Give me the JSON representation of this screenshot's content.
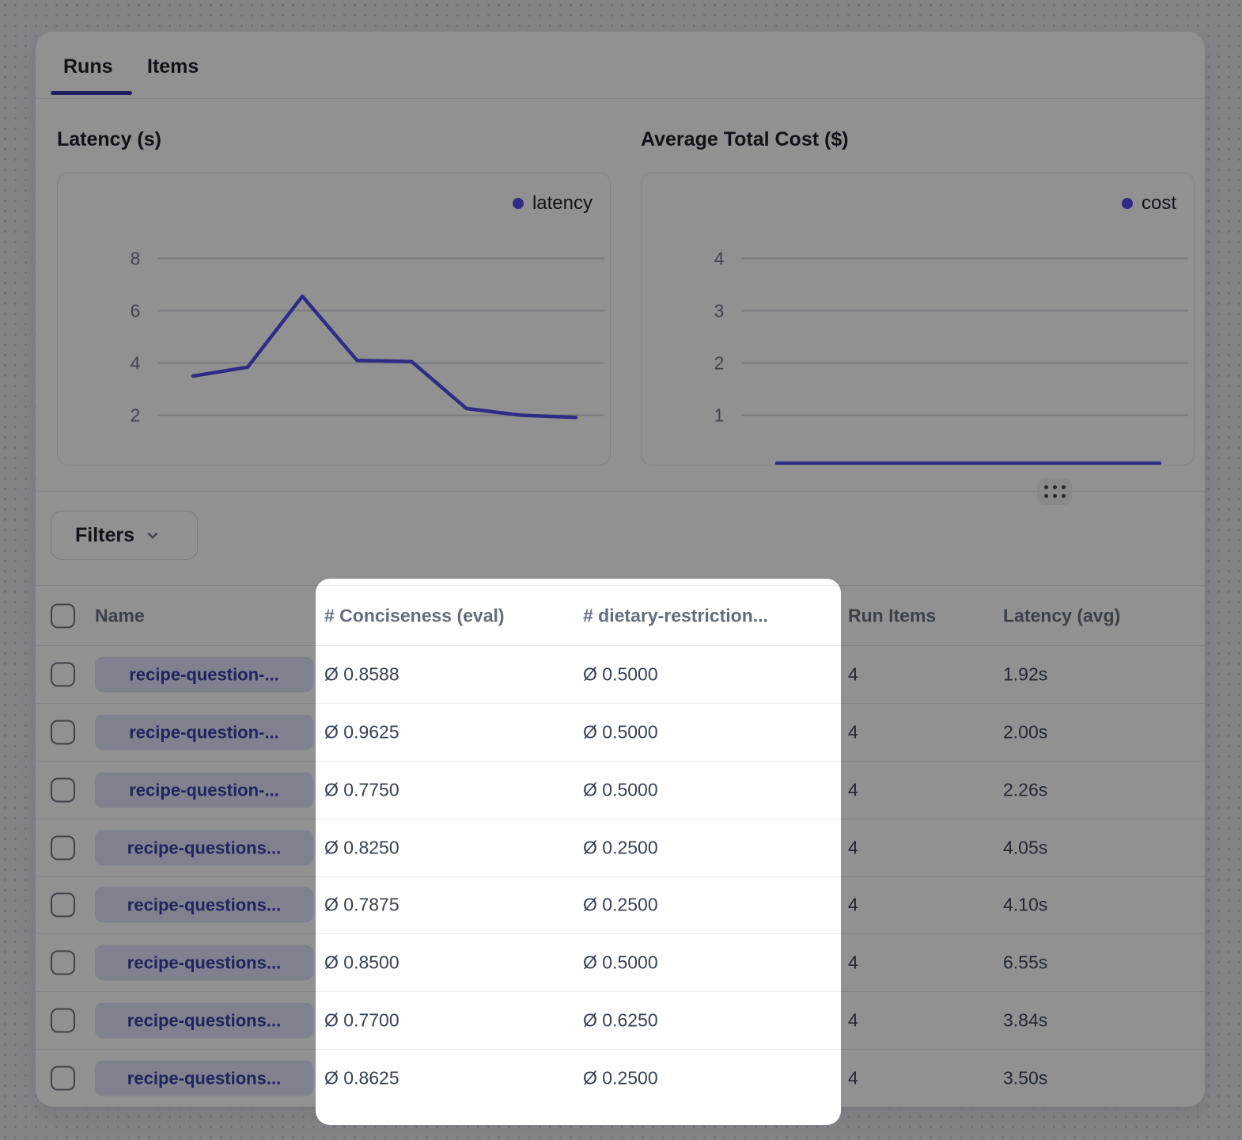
{
  "tabs": {
    "runs": "Runs",
    "items": "Items",
    "active": "Runs"
  },
  "charts": {
    "latency_title": "Latency (s)",
    "cost_title": "Average Total Cost ($)",
    "latency_legend": "latency",
    "cost_legend": "cost"
  },
  "chart_data": [
    {
      "type": "line",
      "title": "Latency (s)",
      "legend": "latency",
      "color": "#4f46e5",
      "grid": true,
      "legend_position": "top-right",
      "yticks": [
        8,
        6,
        4,
        2
      ],
      "ylabel": "",
      "xlabel": "",
      "values": [
        3.5,
        3.84,
        6.55,
        4.1,
        4.05,
        2.26,
        2.0,
        1.92
      ]
    },
    {
      "type": "line",
      "title": "Average Total Cost ($)",
      "legend": "cost",
      "color": "#4f46e5",
      "grid": true,
      "legend_position": "top-right",
      "yticks": [
        4,
        3,
        2,
        1
      ],
      "ylabel": "",
      "xlabel": "",
      "values": [
        0.003,
        0.003,
        0.003,
        0.003,
        0.003,
        0.003,
        0.003,
        0.003
      ]
    }
  ],
  "filters": {
    "label": "Filters"
  },
  "table": {
    "headers": {
      "name": "Name",
      "conciseness": "# Conciseness (eval)",
      "dietary": "# dietary-restriction...",
      "run_items": "Run Items",
      "latency": "Latency (avg)"
    },
    "rows": [
      {
        "name": "recipe-question-...",
        "conciseness": "Ø 0.8588",
        "dietary": "Ø 0.5000",
        "run_items": "4",
        "latency": "1.92s"
      },
      {
        "name": "recipe-question-...",
        "conciseness": "Ø 0.9625",
        "dietary": "Ø 0.5000",
        "run_items": "4",
        "latency": "2.00s"
      },
      {
        "name": "recipe-question-...",
        "conciseness": "Ø 0.7750",
        "dietary": "Ø 0.5000",
        "run_items": "4",
        "latency": "2.26s"
      },
      {
        "name": "recipe-questions...",
        "conciseness": "Ø 0.8250",
        "dietary": "Ø 0.2500",
        "run_items": "4",
        "latency": "4.05s"
      },
      {
        "name": "recipe-questions...",
        "conciseness": "Ø 0.7875",
        "dietary": "Ø 0.2500",
        "run_items": "4",
        "latency": "4.10s"
      },
      {
        "name": "recipe-questions...",
        "conciseness": "Ø 0.8500",
        "dietary": "Ø 0.5000",
        "run_items": "4",
        "latency": "6.55s"
      },
      {
        "name": "recipe-questions...",
        "conciseness": "Ø 0.7700",
        "dietary": "Ø 0.6250",
        "run_items": "4",
        "latency": "3.84s"
      },
      {
        "name": "recipe-questions...",
        "conciseness": "Ø 0.8625",
        "dietary": "Ø 0.2500",
        "run_items": "4",
        "latency": "3.50s"
      }
    ]
  },
  "colors": {
    "accent": "#4f46e5",
    "tab_indicator": "#3730a3",
    "pill_bg": "#dfe3f8",
    "pill_text": "#2e3a9f",
    "dim_overlay": "rgba(10,10,14,0.45)",
    "spotlight_bg": "#ffffff"
  }
}
